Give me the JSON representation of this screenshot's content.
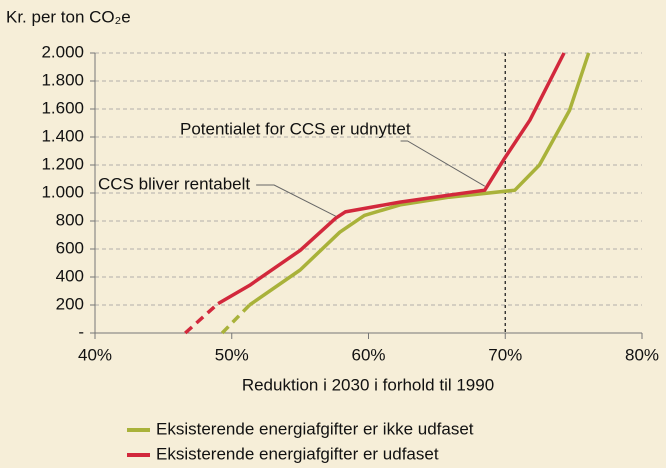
{
  "chart_data": {
    "type": "line",
    "y_axis_label": "Kr. per ton CO₂e",
    "x_axis_label": "Reduktion i 2030 i forhold til 1990",
    "xlim": [
      40,
      80
    ],
    "xticks": [
      {
        "value": 40,
        "label": "40%"
      },
      {
        "value": 50,
        "label": "50%"
      },
      {
        "value": 60,
        "label": "60%"
      },
      {
        "value": 70,
        "label": "70%"
      },
      {
        "value": 80,
        "label": "80%"
      }
    ],
    "ylim": [
      0,
      2000
    ],
    "yticks": [
      {
        "value": 0,
        "label": "-"
      },
      200,
      400,
      600,
      800,
      {
        "value": 1000,
        "label": "1.000"
      },
      {
        "value": 1200,
        "label": "1.200"
      },
      {
        "value": 1400,
        "label": "1.400"
      },
      {
        "value": 1600,
        "label": "1.600"
      },
      {
        "value": 1800,
        "label": "1.800"
      },
      {
        "value": 2000,
        "label": "2.000"
      }
    ],
    "grid": true,
    "vline": 70,
    "dashed_first_segment": true,
    "series": [
      {
        "name": "Eksisterende energiafgifter er ikke udfaset",
        "color": "#a9b23a",
        "x": [
          49.3,
          51.3,
          55.0,
          57.9,
          59.7,
          62.3,
          65.9,
          70.7,
          72.5,
          74.7,
          76.1
        ],
        "values": [
          0,
          200,
          450,
          720,
          840,
          915,
          970,
          1020,
          1200,
          1590,
          2000
        ]
      },
      {
        "name": "Eksisterende energiafgifter er udfaset",
        "color": "#d2283c",
        "x": [
          46.6,
          49.0,
          51.3,
          55.0,
          57.6,
          58.3,
          62.3,
          65.9,
          68.5,
          69.9,
          71.8,
          74.3
        ],
        "values": [
          0,
          210,
          340,
          590,
          820,
          865,
          935,
          985,
          1020,
          1240,
          1520,
          2000
        ]
      }
    ],
    "annotations": [
      {
        "text": "Potentialet for CCS er udnyttet",
        "x": 68.5,
        "y": 1020
      },
      {
        "text": "CCS bliver rentabelt",
        "x": 57.6,
        "y": 820
      }
    ]
  }
}
